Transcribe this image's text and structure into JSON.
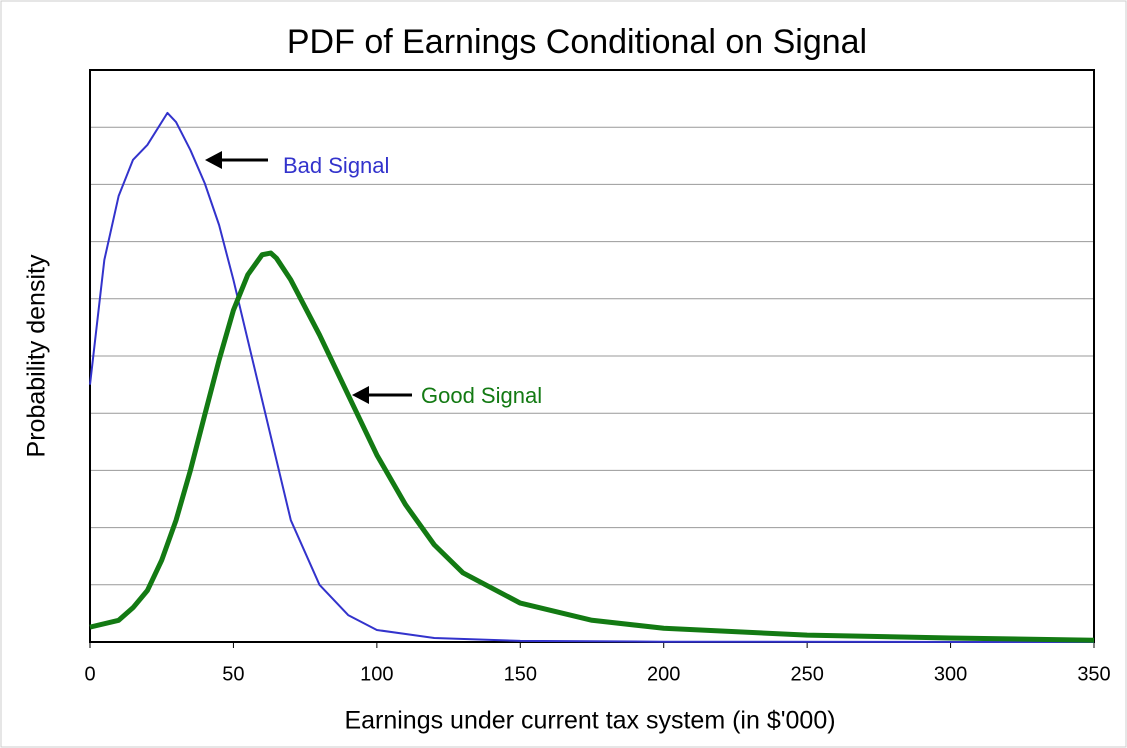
{
  "chart_data": {
    "type": "line",
    "title": "PDF of Earnings Conditional on Signal",
    "xlabel": "Earnings under current tax system (in $'000)",
    "ylabel": "Probability density",
    "xlim": [
      0,
      350
    ],
    "xticks": [
      0,
      50,
      100,
      150,
      200,
      250,
      300,
      350
    ],
    "ylim": [
      0,
      10
    ],
    "yticks": [
      1,
      2,
      3,
      4,
      5,
      6,
      7,
      8,
      9
    ],
    "grid": true,
    "series": [
      {
        "name": "Bad Signal",
        "color": "#3333cc",
        "width": 2,
        "x": [
          0,
          5,
          10,
          15,
          20,
          27,
          30,
          35,
          40,
          45,
          50,
          55,
          60,
          65,
          70,
          80,
          90,
          100,
          120,
          150,
          200,
          350
        ],
        "values": [
          4.5,
          6.68,
          7.8,
          8.43,
          8.69,
          9.25,
          9.09,
          8.6,
          8.02,
          7.29,
          6.33,
          5.28,
          4.23,
          3.18,
          2.13,
          1.0,
          0.47,
          0.21,
          0.07,
          0.02,
          0.005,
          0
        ]
      },
      {
        "name": "Good Signal",
        "color": "#137a13",
        "width": 5,
        "x": [
          0,
          10,
          15,
          20,
          25,
          30,
          35,
          40,
          45,
          50,
          55,
          60,
          63,
          65,
          70,
          80,
          90,
          100,
          110,
          120,
          130,
          150,
          175,
          200,
          250,
          300,
          350
        ],
        "values": [
          0.26,
          0.38,
          0.6,
          0.9,
          1.43,
          2.13,
          3.0,
          3.97,
          4.93,
          5.8,
          6.42,
          6.77,
          6.8,
          6.71,
          6.33,
          5.37,
          4.32,
          3.27,
          2.4,
          1.7,
          1.21,
          0.68,
          0.38,
          0.24,
          0.12,
          0.07,
          0.03
        ]
      }
    ],
    "annotations": [
      {
        "text": "Bad Signal",
        "color": "#3333cc"
      },
      {
        "text": "Good Signal",
        "color": "#137a13"
      }
    ]
  }
}
